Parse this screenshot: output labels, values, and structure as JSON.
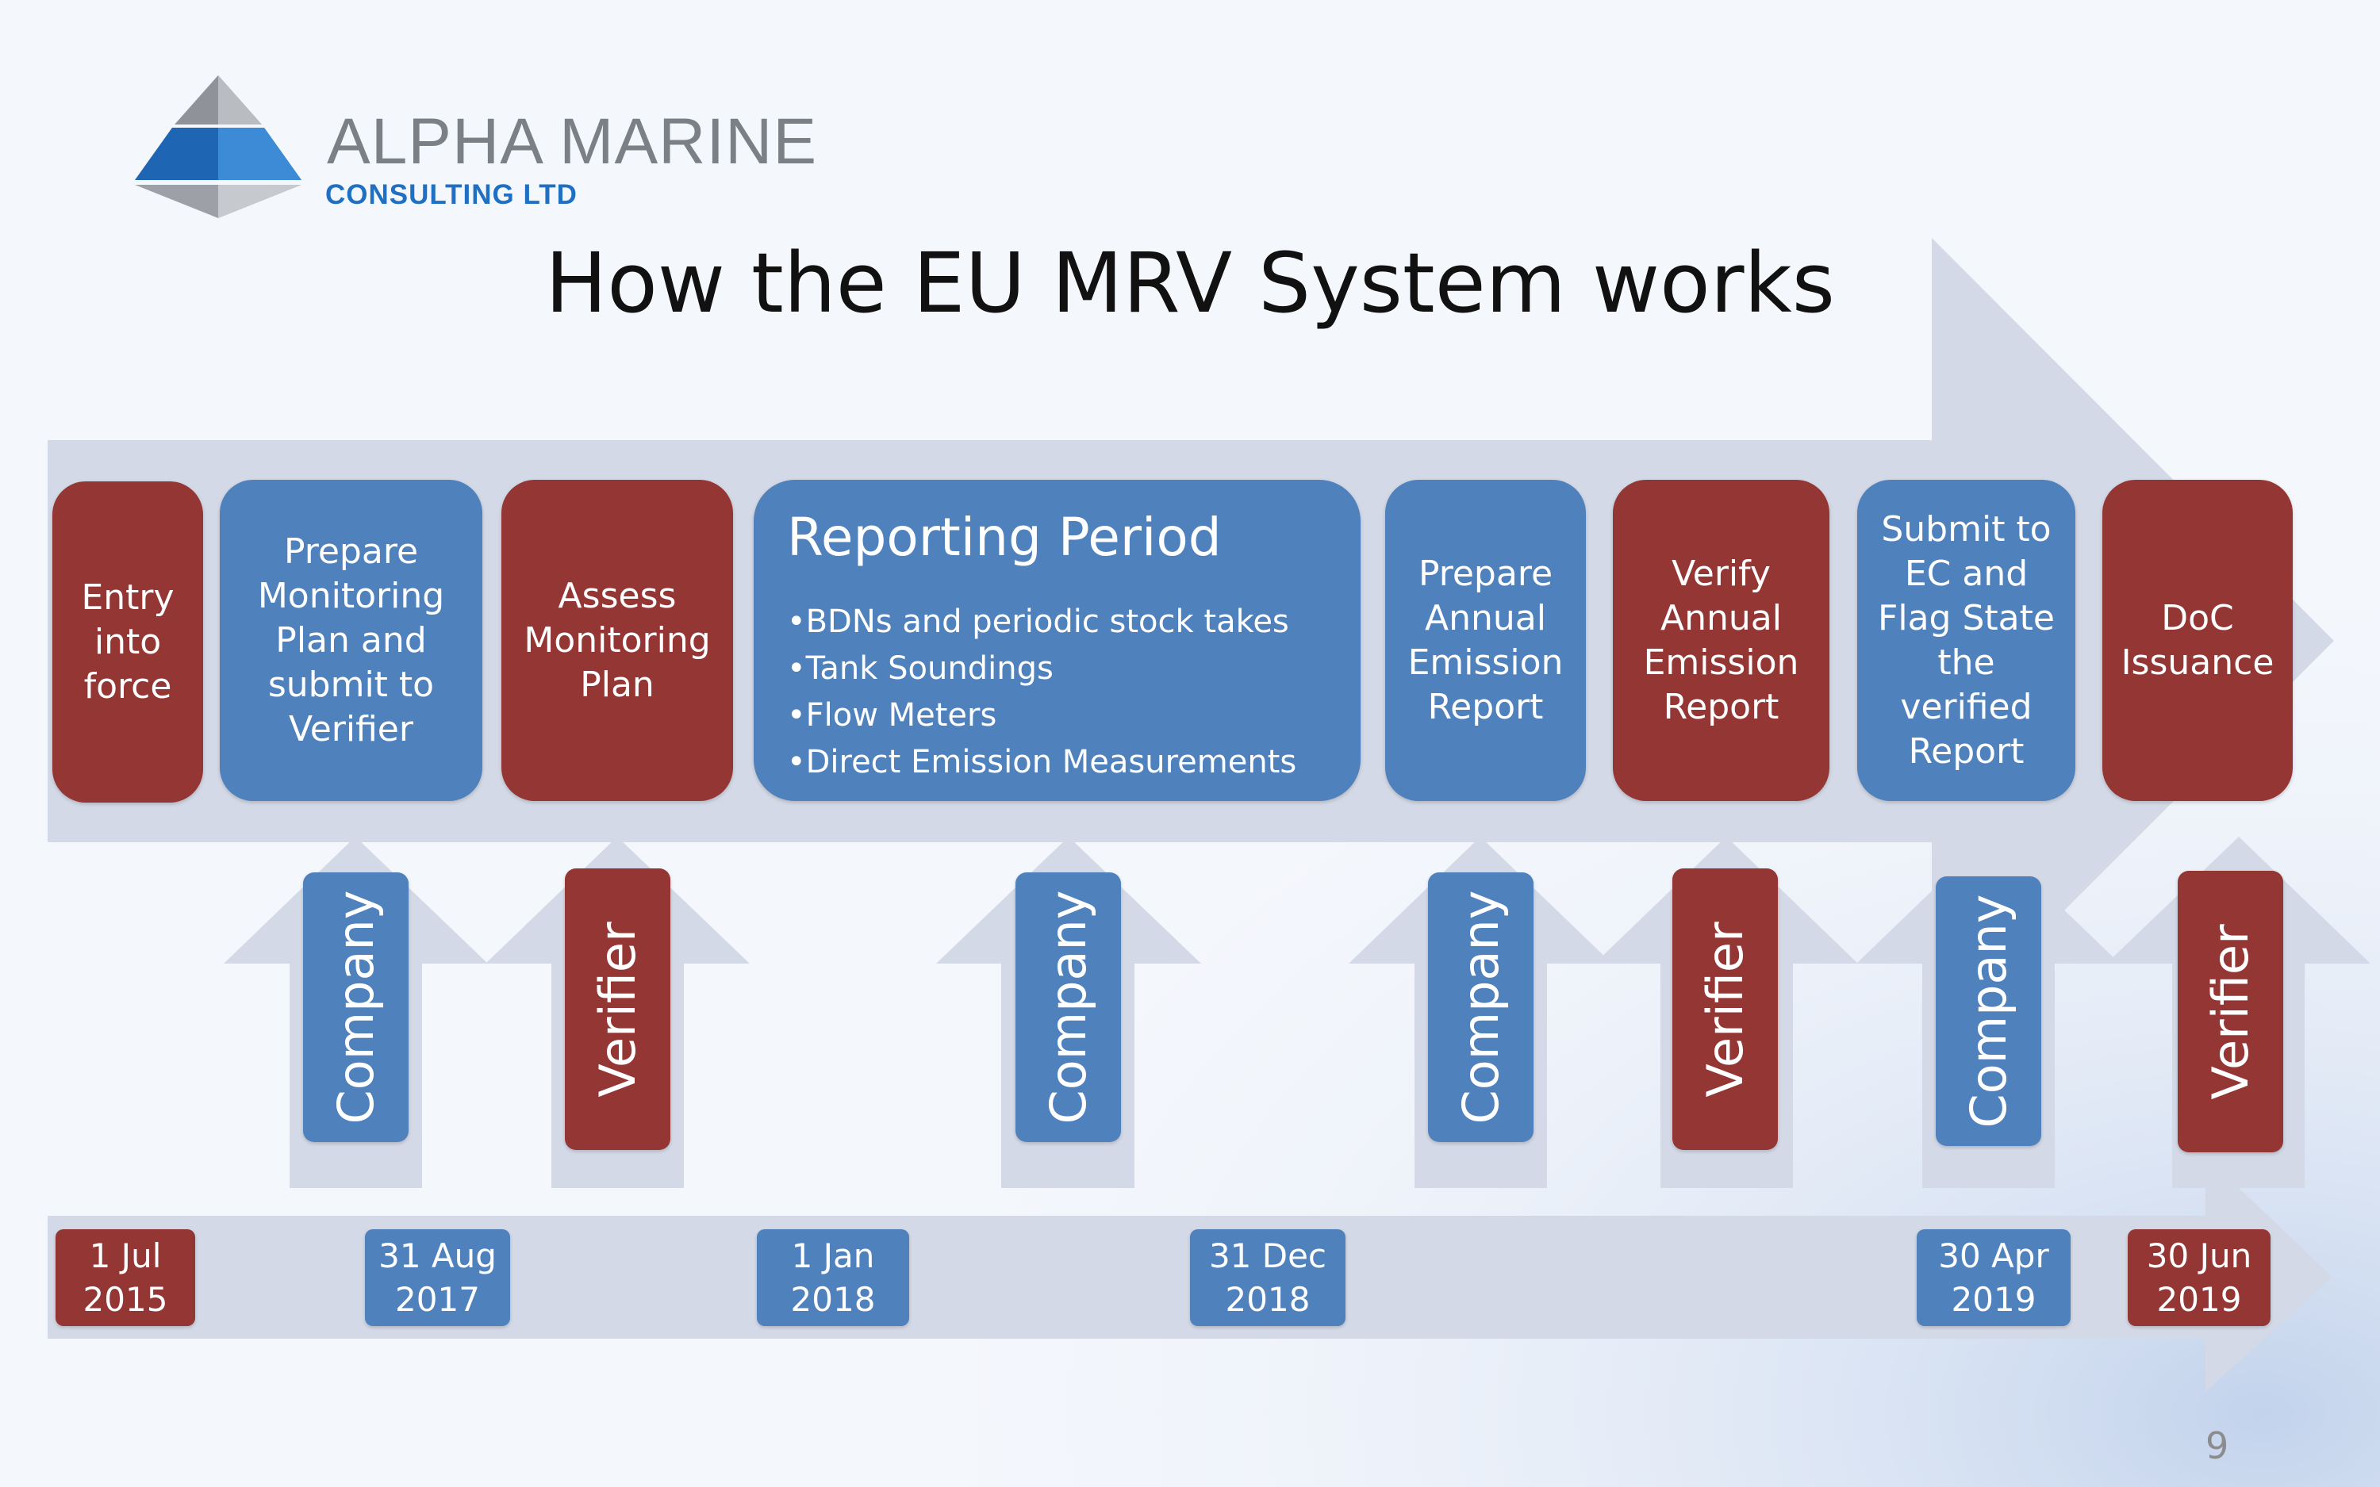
{
  "logo": {
    "name": "ALPHA MARINE",
    "subtitle": "CONSULTING LTD"
  },
  "title": "How the EU MRV System works",
  "steps": [
    {
      "label": "Entry\ninto\nforce",
      "color": "red"
    },
    {
      "label": "Prepare\nMonitoring\nPlan and\nsubmit to\nVerifier",
      "color": "blue"
    },
    {
      "label": "Assess\nMonitoring\nPlan",
      "color": "red"
    },
    {
      "label": "Prepare\nAnnual\nEmission\nReport",
      "color": "blue"
    },
    {
      "label": "Verify\nAnnual\nEmission\nReport",
      "color": "red"
    },
    {
      "label": "Submit to\nEC and\nFlag State\nthe\nverified\nReport",
      "color": "blue"
    },
    {
      "label": "DoC\nIssuance",
      "color": "red"
    }
  ],
  "reporting_period": {
    "title": "Reporting Period",
    "items": [
      "BDNs and periodic stock takes",
      "Tank Soundings",
      "Flow Meters",
      "Direct Emission Measurements"
    ]
  },
  "roles": [
    "Company",
    "Verifier",
    "Company",
    "Company",
    "Verifier",
    "Company",
    "Verifier"
  ],
  "dates": [
    "1 Jul\n2015",
    "31 Aug\n2017",
    "1 Jan\n2018",
    "31 Dec\n2018",
    "30 Apr\n2019",
    "30 Jun\n2019"
  ],
  "page_number": "9",
  "colors": {
    "red": "#943634",
    "blue": "#4f81bd",
    "arrow": "#d3d9e6",
    "logo_blue": "#1f6fc2",
    "logo_grey": "#7b7f86"
  }
}
